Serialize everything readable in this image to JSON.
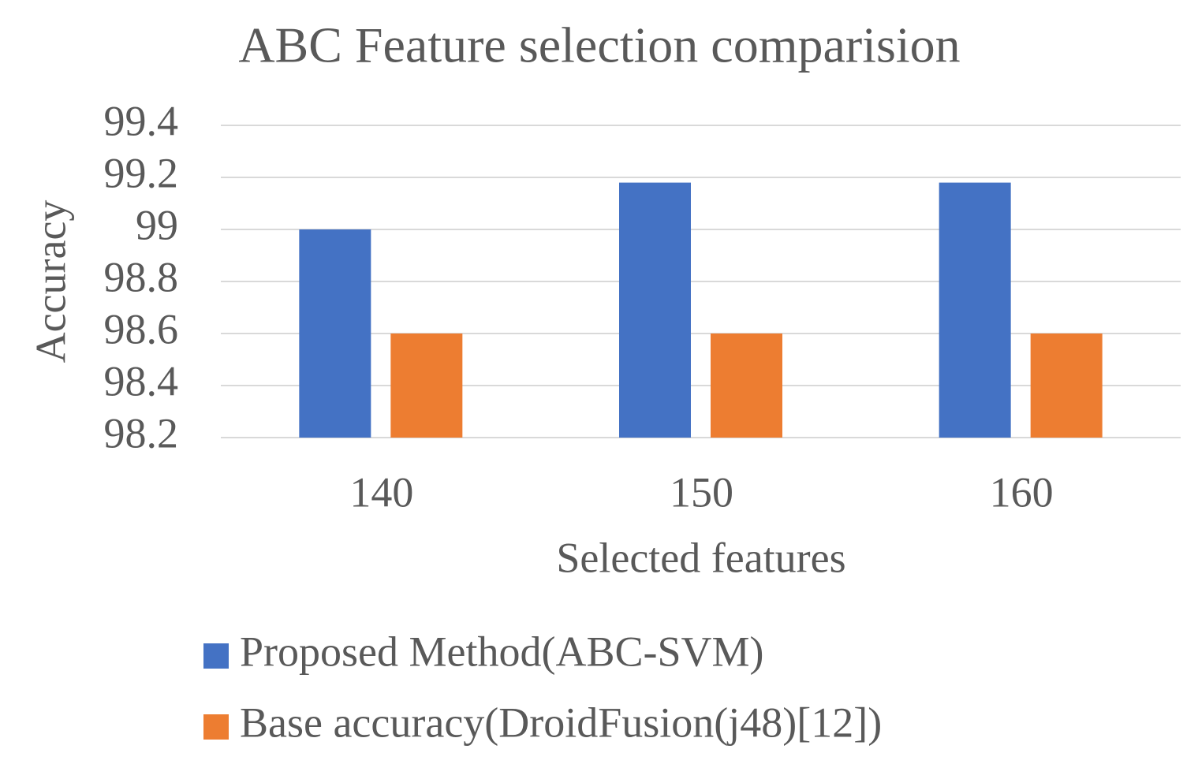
{
  "chart_data": {
    "type": "bar",
    "title": "ABC Feature selection comparision",
    "x_label": "Selected features",
    "y_label": "Accuracy",
    "categories": [
      "140",
      "150",
      "160"
    ],
    "series": [
      {
        "name": "Proposed Method(ABC-SVM)",
        "color": "#4472c4",
        "values": [
          99.0,
          99.18,
          99.18
        ]
      },
      {
        "name": "Base accuracy(DroidFusion(j48)[12])",
        "color": "#ed7d31",
        "values": [
          98.6,
          98.6,
          98.6
        ]
      }
    ],
    "ylim": [
      98.2,
      99.4
    ],
    "yticks": [
      98.2,
      98.4,
      98.6,
      98.8,
      99,
      99.2,
      99.4
    ],
    "grid": true,
    "legend": "bottom"
  }
}
